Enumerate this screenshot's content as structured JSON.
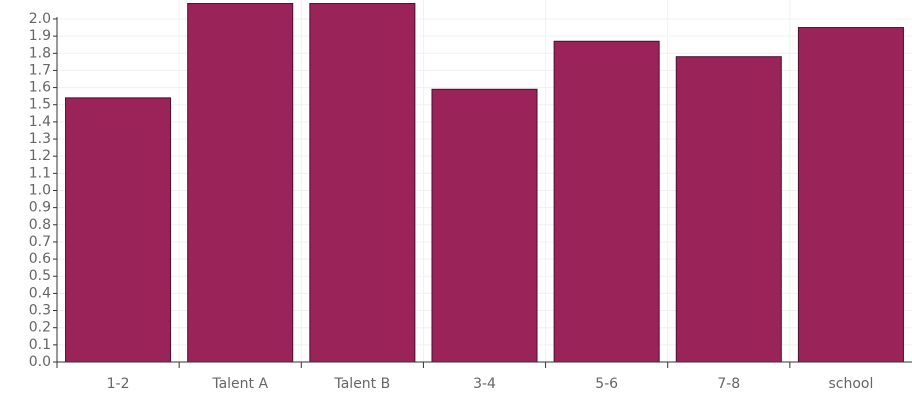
{
  "chart_data": {
    "type": "bar",
    "categories": [
      "1-2",
      "Talent A",
      "Talent B",
      "3-4",
      "5-6",
      "7-8",
      "school"
    ],
    "values": [
      1.54,
      2.09,
      2.09,
      1.59,
      1.87,
      1.78,
      1.95
    ],
    "color": "#9a2359",
    "ylim": [
      0,
      2.11
    ],
    "yticks": [
      {
        "value": 0,
        "label": "0.0"
      },
      0.1,
      0.2,
      0.3,
      0.4,
      0.5,
      0.6,
      0.7,
      0.8,
      0.9,
      {
        "value": 1,
        "label": "1.0"
      },
      1.1,
      1.2,
      1.3,
      1.4,
      1.5,
      1.6,
      1.7,
      1.8,
      1.9,
      {
        "value": 2,
        "label": "2.0"
      }
    ],
    "grid": true
  }
}
